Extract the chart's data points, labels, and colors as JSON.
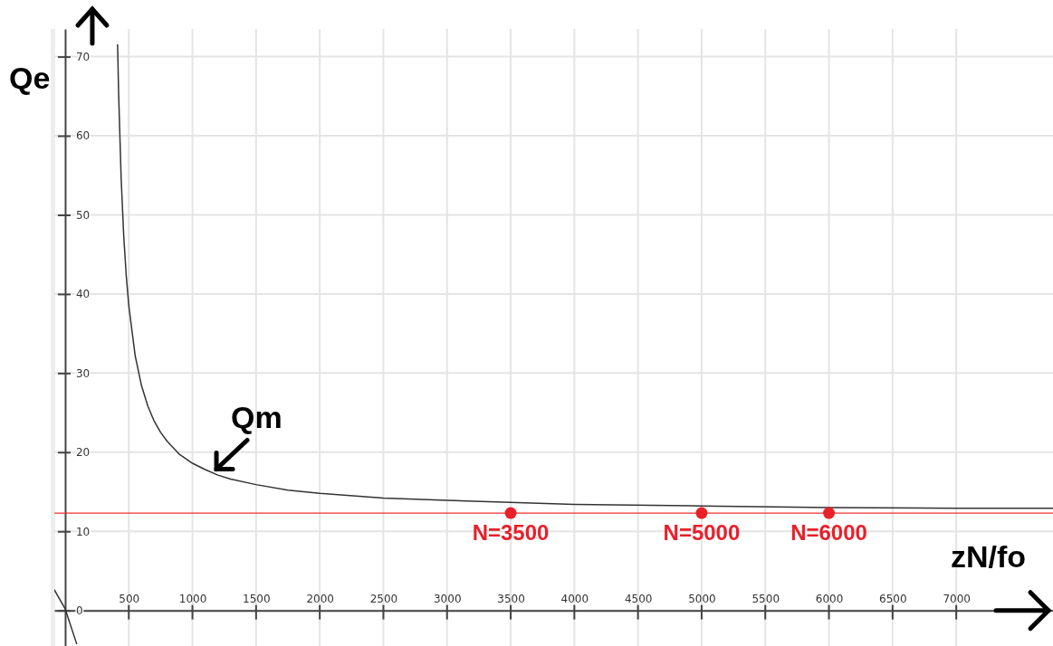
{
  "chart_data": {
    "type": "line",
    "xlabel": "zN/fo",
    "ylabel": "Qe",
    "xlim": [
      -85,
      7760
    ],
    "ylim": [
      -4.5,
      73.5
    ],
    "xticks": [
      500,
      1000,
      1500,
      2000,
      2500,
      3000,
      3500,
      4000,
      4500,
      5000,
      5500,
      6000,
      6500,
      7000
    ],
    "yticks": [
      0,
      10,
      20,
      30,
      40,
      50,
      60,
      70
    ],
    "grid": true,
    "line_style": "solid",
    "series": [
      {
        "color": "#333333",
        "x": [
          412,
          420,
          440,
          460,
          480,
          500,
          550,
          600,
          650,
          700,
          750,
          800,
          900,
          1000,
          1100,
          1200,
          1300,
          1500,
          1750,
          2000,
          2500,
          3000,
          4000,
          5000,
          6000,
          7000,
          7760
        ],
        "values": [
          71.5,
          65.4,
          54.6,
          47.4,
          42.3,
          38.5,
          32.2,
          28.4,
          25.8,
          23.9,
          22.5,
          21.4,
          19.7,
          18.6,
          17.8,
          17.1,
          16.6,
          15.9,
          15.2,
          14.8,
          14.2,
          13.9,
          13.4,
          13.2,
          13.0,
          12.9,
          12.9
        ]
      },
      {
        "color": "#333333",
        "x": [
          -85,
          0,
          90
        ],
        "values": [
          2.6,
          0.2,
          -4.2
        ]
      },
      {
        "type": "scatter",
        "color": "#e8202a",
        "marker": "circle",
        "x": [
          3500,
          5000,
          6000
        ],
        "values": [
          12.3,
          12.3,
          12.3
        ]
      }
    ],
    "ref_lines": [
      {
        "axis": "y",
        "value": 12.3,
        "color": "#f03030",
        "line_style": "solid"
      }
    ],
    "annotations": [
      {
        "text": "Qm",
        "x": 1160,
        "y": 17.4
      },
      {
        "text": "N=3500",
        "x": 3500,
        "y": 12.3
      },
      {
        "text": "N=5000",
        "x": 5000,
        "y": 12.3
      },
      {
        "text": "N=6000",
        "x": 6000,
        "y": 12.3
      }
    ]
  }
}
